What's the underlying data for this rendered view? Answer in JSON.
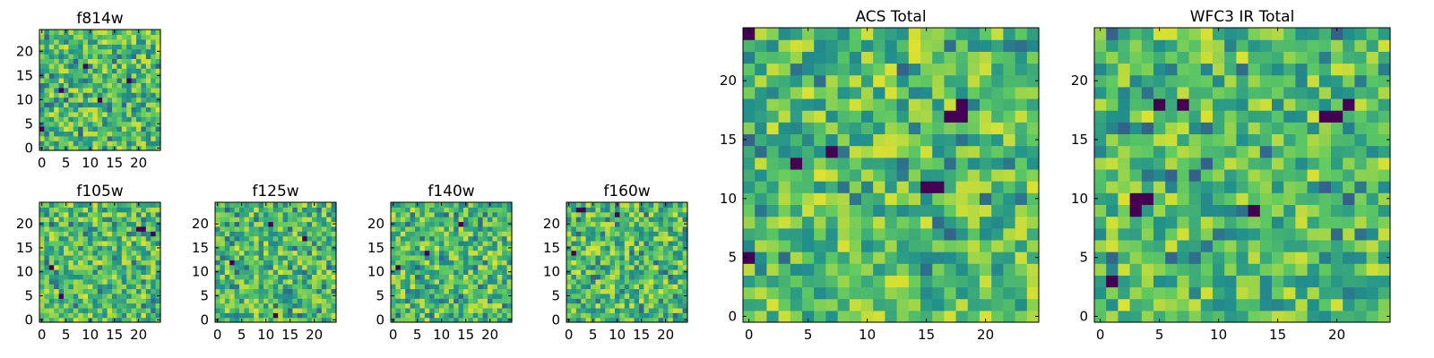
{
  "figure": {
    "colormap": [
      "#440154",
      "#3b528b",
      "#21918c",
      "#5ec962",
      "#fde725"
    ]
  },
  "chart_data": [
    {
      "id": "f814w",
      "type": "heatmap",
      "title": "f814w",
      "grid_size": 25,
      "xlim": [
        -0.5,
        24.5
      ],
      "ylim": [
        -0.5,
        24.5
      ],
      "xticks": [
        0,
        5,
        10,
        15,
        20
      ],
      "yticks": [
        0,
        5,
        10,
        15,
        20
      ],
      "seed": 814,
      "dark_cells": [
        [
          18,
          14
        ],
        [
          4,
          12
        ],
        [
          12,
          10
        ],
        [
          0,
          4
        ],
        [
          9,
          17
        ]
      ]
    },
    {
      "id": "f105w",
      "type": "heatmap",
      "title": "f105w",
      "grid_size": 25,
      "xlim": [
        -0.5,
        24.5
      ],
      "ylim": [
        -0.5,
        24.5
      ],
      "xticks": [
        0,
        5,
        10,
        15,
        20
      ],
      "yticks": [
        0,
        5,
        10,
        15,
        20
      ],
      "seed": 105,
      "dark_cells": [
        [
          20,
          19
        ],
        [
          21,
          19
        ],
        [
          23,
          18
        ],
        [
          2,
          11
        ],
        [
          4,
          5
        ]
      ]
    },
    {
      "id": "f125w",
      "type": "heatmap",
      "title": "f125w",
      "grid_size": 25,
      "xlim": [
        -0.5,
        24.5
      ],
      "ylim": [
        -0.5,
        24.5
      ],
      "xticks": [
        0,
        5,
        10,
        15,
        20
      ],
      "yticks": [
        0,
        5,
        10,
        15,
        20
      ],
      "seed": 125,
      "dark_cells": [
        [
          11,
          20
        ],
        [
          18,
          17
        ],
        [
          3,
          12
        ],
        [
          12,
          1
        ]
      ]
    },
    {
      "id": "f140w",
      "type": "heatmap",
      "title": "f140w",
      "grid_size": 25,
      "xlim": [
        -0.5,
        24.5
      ],
      "ylim": [
        -0.5,
        24.5
      ],
      "xticks": [
        0,
        5,
        10,
        15,
        20
      ],
      "yticks": [
        0,
        5,
        10,
        15,
        20
      ],
      "seed": 140,
      "dark_cells": [
        [
          1,
          11
        ],
        [
          14,
          20
        ],
        [
          7,
          14
        ]
      ]
    },
    {
      "id": "f160w",
      "type": "heatmap",
      "title": "f160w",
      "grid_size": 25,
      "xlim": [
        -0.5,
        24.5
      ],
      "ylim": [
        -0.5,
        24.5
      ],
      "xticks": [
        0,
        5,
        10,
        15,
        20
      ],
      "yticks": [
        0,
        5,
        10,
        15,
        20
      ],
      "seed": 160,
      "dark_cells": [
        [
          2,
          23
        ],
        [
          3,
          23
        ],
        [
          1,
          14
        ],
        [
          10,
          22
        ]
      ]
    },
    {
      "id": "acs-total",
      "type": "heatmap",
      "title": "ACS Total",
      "grid_size": 25,
      "xlim": [
        -0.5,
        24.5
      ],
      "ylim": [
        -0.5,
        24.5
      ],
      "xticks": [
        0,
        5,
        10,
        15,
        20
      ],
      "yticks": [
        0,
        5,
        10,
        15,
        20
      ],
      "seed": 999,
      "dark_cells": [
        [
          0,
          24
        ],
        [
          0,
          5
        ],
        [
          7,
          14
        ],
        [
          4,
          13
        ],
        [
          15,
          11
        ],
        [
          16,
          11
        ],
        [
          17,
          17
        ],
        [
          18,
          17
        ],
        [
          18,
          18
        ]
      ]
    },
    {
      "id": "wfc3-ir-total",
      "type": "heatmap",
      "title": "WFC3 IR Total",
      "grid_size": 25,
      "xlim": [
        -0.5,
        24.5
      ],
      "ylim": [
        -0.5,
        24.5
      ],
      "xticks": [
        0,
        5,
        10,
        15,
        20
      ],
      "yticks": [
        0,
        5,
        10,
        15,
        20
      ],
      "seed": 777,
      "dark_cells": [
        [
          3,
          10
        ],
        [
          4,
          10
        ],
        [
          3,
          9
        ],
        [
          5,
          18
        ],
        [
          7,
          18
        ],
        [
          13,
          9
        ],
        [
          19,
          17
        ],
        [
          20,
          17
        ],
        [
          21,
          18
        ],
        [
          1,
          3
        ]
      ]
    }
  ]
}
